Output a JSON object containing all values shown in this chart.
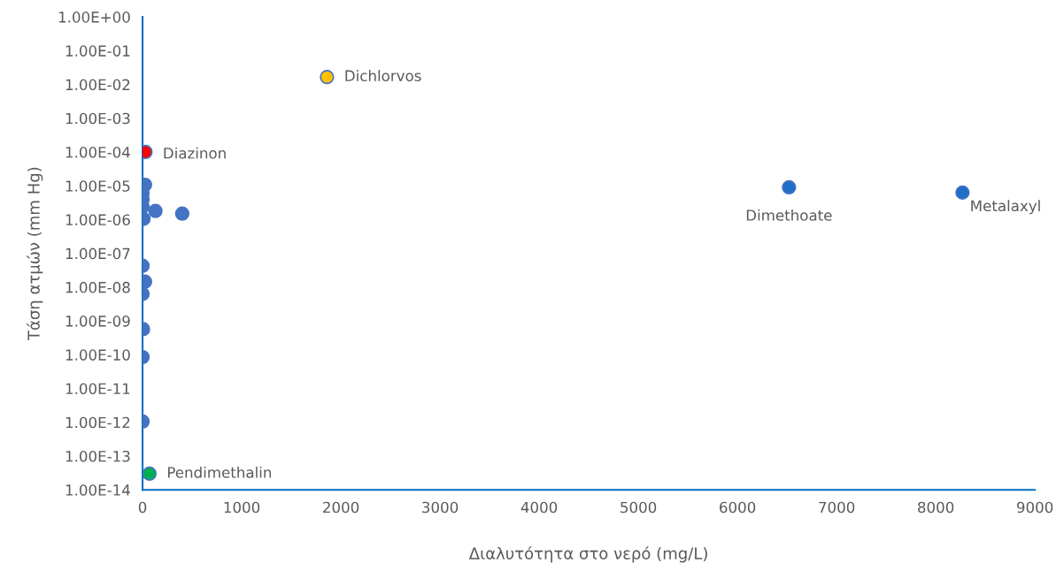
{
  "chart_data": {
    "type": "scatter",
    "xlabel": "Διαλυτότητα στο νερό (mg/L)",
    "ylabel": "Τάση ατμών (mm Hg)",
    "log": "y",
    "grid": false,
    "legend": false,
    "marker": "circle",
    "xlim": [
      0,
      9000
    ],
    "xticks": [
      0,
      1000,
      2000,
      3000,
      4000,
      5000,
      6000,
      7000,
      8000,
      9000
    ],
    "ylim": [
      1e-14,
      1
    ],
    "yticks": [
      {
        "value": 1,
        "label": "1.00E+00"
      },
      {
        "value": 0.1,
        "label": "1.00E-01"
      },
      {
        "value": 0.01,
        "label": "1.00E-02"
      },
      {
        "value": 0.001,
        "label": "1.00E-03"
      },
      {
        "value": 0.0001,
        "label": "1.00E-04"
      },
      {
        "value": 1e-05,
        "label": "1.00E-05"
      },
      {
        "value": 1e-06,
        "label": "1.00E-06"
      },
      {
        "value": 1e-07,
        "label": "1.00E-07"
      },
      {
        "value": 1e-08,
        "label": "1.00E-08"
      },
      {
        "value": 1e-09,
        "label": "1.00E-09"
      },
      {
        "value": 1e-10,
        "label": "1.00E-10"
      },
      {
        "value": 1e-11,
        "label": "1.00E-11"
      },
      {
        "value": 1e-12,
        "label": "1.00E-12"
      },
      {
        "value": 1e-13,
        "label": "1.00E-13"
      },
      {
        "value": 1e-14,
        "label": "1.00E-14"
      }
    ],
    "series": [
      {
        "color": "#4472c4",
        "x": [
          25,
          0,
          0,
          0,
          130,
          400,
          10,
          0,
          25,
          0,
          5,
          0,
          0
        ],
        "values": [
          1.07e-05,
          6.1e-06,
          4e-06,
          2.4e-06,
          1.8e-06,
          1.5e-06,
          1.05e-06,
          4.3e-08,
          1.45e-08,
          6.3e-09,
          5.7e-10,
          8.5e-11,
          1.05e-12
        ]
      },
      {
        "name": "Dichlorvos",
        "color": "#ffc000",
        "x": [
          1860
        ],
        "values": [
          0.0166
        ]
      },
      {
        "name": "Diazinon",
        "color": "#ff0000",
        "x": [
          30
        ],
        "values": [
          0.0001
        ]
      },
      {
        "name": "Dimethoate",
        "color": "#1f6fc6",
        "x": [
          6520
        ],
        "values": [
          9e-06
        ]
      },
      {
        "name": "Metalaxyl",
        "color": "#1f6fc6",
        "x": [
          8270
        ],
        "values": [
          6.3e-06
        ]
      },
      {
        "name": "Pendimethalin",
        "color": "#00b050",
        "x": [
          70
        ],
        "values": [
          3e-14
        ]
      }
    ]
  }
}
